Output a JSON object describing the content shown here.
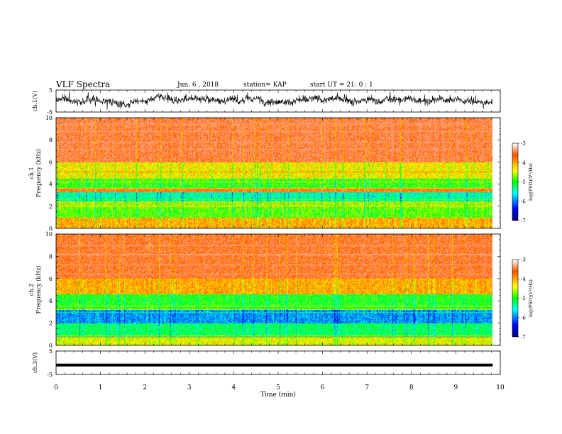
{
  "header": {
    "title": "VLF Spectra",
    "date": "Jun. 6 , 2018",
    "station": "station= KAP",
    "start_ut": "start UT =  21: 0 : 1"
  },
  "chart_data": {
    "type": "heatmap",
    "xlabel": "Time (min)",
    "xlim": [
      0,
      10
    ],
    "x_ticks": [
      0,
      1,
      2,
      3,
      4,
      5,
      6,
      7,
      8,
      9,
      10
    ],
    "data_end_min": 9.83,
    "panels": [
      {
        "id": "ch1-waveform",
        "type": "line",
        "ylabel": "ch.1(V)",
        "ylim": [
          -5,
          5
        ],
        "y_ticks": [
          5,
          -5
        ]
      },
      {
        "id": "ch1-spectrogram",
        "type": "heatmap",
        "ylabel_top": "ch.1",
        "ylabel": "Frequency (kHz)",
        "ylim": [
          0,
          10
        ],
        "y_ticks": [
          0,
          2,
          4,
          6,
          8,
          10
        ],
        "colorbar": {
          "label": "log(PSD)(V²/Hz)",
          "range": [
            -7,
            -3
          ],
          "ticks": [
            -3,
            -4,
            -5,
            -6,
            -7
          ]
        },
        "banding": [
          {
            "from_khz": 0,
            "to_khz": 1.0,
            "level": -4.0
          },
          {
            "from_khz": 1.0,
            "to_khz": 2.0,
            "level": -4.8
          },
          {
            "from_khz": 2.0,
            "to_khz": 2.5,
            "level": -4.6
          },
          {
            "from_khz": 2.5,
            "to_khz": 3.3,
            "level": -5.4
          },
          {
            "from_khz": 3.3,
            "to_khz": 3.6,
            "level": -3.6
          },
          {
            "from_khz": 3.6,
            "to_khz": 4.6,
            "level": -4.9
          },
          {
            "from_khz": 4.6,
            "to_khz": 6.0,
            "level": -4.3
          },
          {
            "from_khz": 6.0,
            "to_khz": 10.0,
            "level": -3.4
          }
        ]
      },
      {
        "id": "ch2-spectrogram",
        "type": "heatmap",
        "ylabel_top": "ch.2",
        "ylabel": "Frequency (kHz)",
        "ylim": [
          0,
          10
        ],
        "y_ticks": [
          0,
          2,
          4,
          6,
          8,
          10
        ],
        "colorbar": {
          "label": "log(PSD)(V²/Hz)",
          "range": [
            -7,
            -3
          ],
          "ticks": [
            -3,
            -4,
            -5,
            -6,
            -7
          ]
        },
        "banding": [
          {
            "from_khz": 0,
            "to_khz": 0.8,
            "level": -4.4
          },
          {
            "from_khz": 0.8,
            "to_khz": 2.0,
            "level": -5.2
          },
          {
            "from_khz": 2.0,
            "to_khz": 3.2,
            "level": -5.9
          },
          {
            "from_khz": 3.2,
            "to_khz": 4.6,
            "level": -5.0
          },
          {
            "from_khz": 4.6,
            "to_khz": 6.0,
            "level": -4.0
          },
          {
            "from_khz": 6.0,
            "to_khz": 10.0,
            "level": -3.5
          }
        ]
      },
      {
        "id": "ch3-waveform",
        "type": "line",
        "ylabel": "ch.3(V)",
        "ylim": [
          -5,
          5
        ],
        "y_ticks": [
          5,
          -5
        ],
        "constant_value": -1
      }
    ]
  }
}
